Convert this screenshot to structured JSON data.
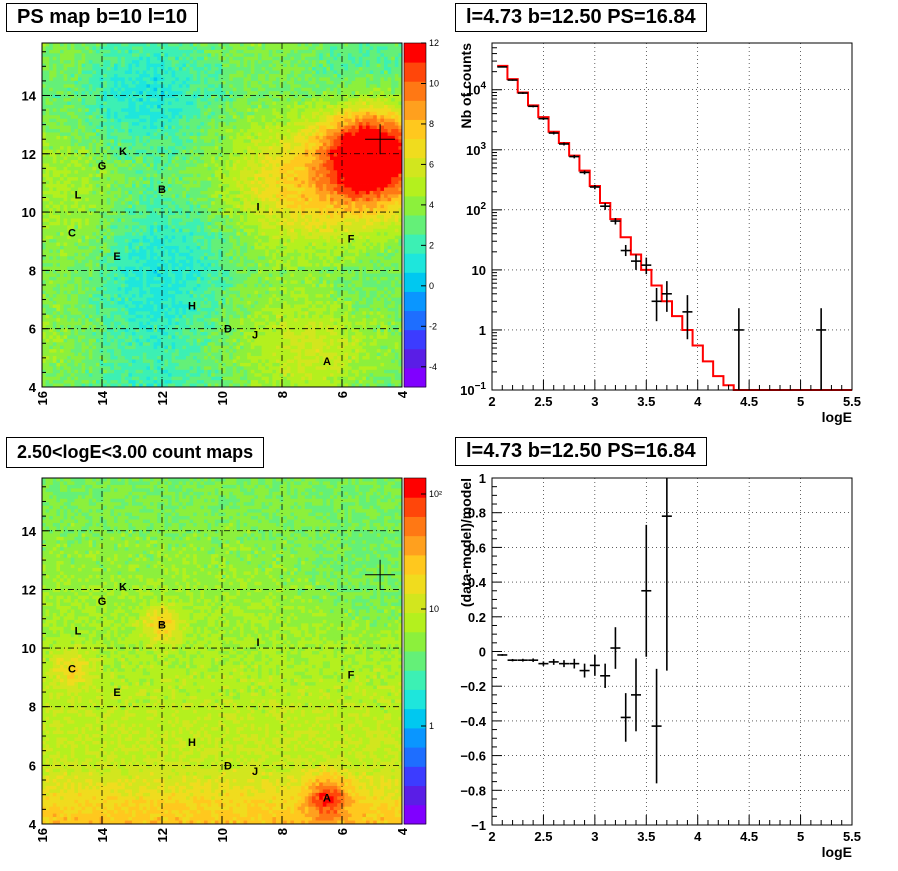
{
  "panels": {
    "ps_map": {
      "title": "PS map b=10 l=10"
    },
    "count_map": {
      "title": "2.50<logE<3.00 count maps"
    },
    "spectrum": {
      "title": "l=4.73 b=12.50 PS=16.84"
    },
    "residual": {
      "title": "l=4.73 b=12.50 PS=16.84"
    }
  },
  "chart_data": [
    {
      "id": "ps_map",
      "type": "heatmap",
      "title": "PS map b=10 l=10",
      "xlim": [
        16,
        4
      ],
      "ylim": [
        4,
        15.8
      ],
      "x_ticks": [
        16,
        14,
        12,
        10,
        8,
        6,
        4
      ],
      "y_ticks": [
        4,
        6,
        8,
        10,
        12,
        14
      ],
      "colorbar": {
        "range": [
          -5,
          12
        ],
        "ticks": [
          12,
          10,
          8,
          6,
          4,
          2,
          0,
          -2,
          -4
        ]
      },
      "marker": {
        "x": 4.73,
        "y": 12.5
      },
      "sources": [
        {
          "label": "K",
          "x": 13.3,
          "y": 12.1
        },
        {
          "label": "G",
          "x": 14.0,
          "y": 11.6
        },
        {
          "label": "B",
          "x": 12.0,
          "y": 10.8
        },
        {
          "label": "L",
          "x": 14.8,
          "y": 10.6
        },
        {
          "label": "I",
          "x": 8.8,
          "y": 10.2
        },
        {
          "label": "C",
          "x": 15.0,
          "y": 9.3
        },
        {
          "label": "F",
          "x": 5.7,
          "y": 9.1
        },
        {
          "label": "E",
          "x": 13.5,
          "y": 8.5
        },
        {
          "label": "H",
          "x": 11.0,
          "y": 6.8
        },
        {
          "label": "D",
          "x": 9.8,
          "y": 6.0
        },
        {
          "label": "J",
          "x": 8.9,
          "y": 5.8
        },
        {
          "label": "A",
          "x": 6.5,
          "y": 4.9
        }
      ]
    },
    {
      "id": "count_map",
      "type": "heatmap",
      "title": "2.50<logE<3.00 count maps",
      "xlim": [
        16,
        4
      ],
      "ylim": [
        4,
        15.8
      ],
      "x_ticks": [
        16,
        14,
        12,
        10,
        8,
        6,
        4
      ],
      "y_ticks": [
        4,
        6,
        8,
        10,
        12,
        14
      ],
      "colorbar": {
        "scale": "log",
        "ticks": [
          "10²",
          "10",
          "1"
        ]
      },
      "marker": {
        "x": 4.73,
        "y": 12.5
      },
      "sources": [
        {
          "label": "K",
          "x": 13.3,
          "y": 12.1
        },
        {
          "label": "G",
          "x": 14.0,
          "y": 11.6
        },
        {
          "label": "B",
          "x": 12.0,
          "y": 10.8
        },
        {
          "label": "L",
          "x": 14.8,
          "y": 10.6
        },
        {
          "label": "I",
          "x": 8.8,
          "y": 10.2
        },
        {
          "label": "C",
          "x": 15.0,
          "y": 9.3
        },
        {
          "label": "F",
          "x": 5.7,
          "y": 9.1
        },
        {
          "label": "E",
          "x": 13.5,
          "y": 8.5
        },
        {
          "label": "H",
          "x": 11.0,
          "y": 6.8
        },
        {
          "label": "D",
          "x": 9.8,
          "y": 6.0
        },
        {
          "label": "J",
          "x": 8.9,
          "y": 5.8
        },
        {
          "label": "A",
          "x": 6.5,
          "y": 4.9
        }
      ]
    },
    {
      "id": "spectrum",
      "type": "line",
      "title": "l=4.73 b=12.50 PS=16.84",
      "xlabel": "logE",
      "ylabel": "Nb of counts",
      "xlim": [
        2,
        5.5
      ],
      "ylim": [
        0.1,
        60000
      ],
      "yscale": "log",
      "grid": true,
      "x_ticks": [
        "2",
        "2.5",
        "3",
        "3.5",
        "4",
        "4.5",
        "5",
        "5.5"
      ],
      "y_ticks": [
        {
          "v": 0.1,
          "base": "10",
          "exp": "−1"
        },
        {
          "v": 1,
          "base": "1",
          "exp": ""
        },
        {
          "v": 10,
          "base": "10",
          "exp": ""
        },
        {
          "v": 100,
          "base": "10",
          "exp": "2"
        },
        {
          "v": 1000,
          "base": "10",
          "exp": "3"
        },
        {
          "v": 10000,
          "base": "10",
          "exp": "4"
        }
      ],
      "model_steps": [
        {
          "x0": 2.05,
          "x1": 2.15,
          "y": 25000
        },
        {
          "x0": 2.15,
          "x1": 2.25,
          "y": 15000
        },
        {
          "x0": 2.25,
          "x1": 2.35,
          "y": 9000
        },
        {
          "x0": 2.35,
          "x1": 2.45,
          "y": 5500
        },
        {
          "x0": 2.45,
          "x1": 2.55,
          "y": 3500
        },
        {
          "x0": 2.55,
          "x1": 2.65,
          "y": 2000
        },
        {
          "x0": 2.65,
          "x1": 2.75,
          "y": 1300
        },
        {
          "x0": 2.75,
          "x1": 2.85,
          "y": 800
        },
        {
          "x0": 2.85,
          "x1": 2.95,
          "y": 450
        },
        {
          "x0": 2.95,
          "x1": 3.05,
          "y": 250
        },
        {
          "x0": 3.05,
          "x1": 3.15,
          "y": 130
        },
        {
          "x0": 3.15,
          "x1": 3.25,
          "y": 70
        },
        {
          "x0": 3.25,
          "x1": 3.35,
          "y": 35
        },
        {
          "x0": 3.35,
          "x1": 3.45,
          "y": 18
        },
        {
          "x0": 3.45,
          "x1": 3.55,
          "y": 10
        },
        {
          "x0": 3.55,
          "x1": 3.65,
          "y": 5.5
        },
        {
          "x0": 3.65,
          "x1": 3.75,
          "y": 3
        },
        {
          "x0": 3.75,
          "x1": 3.85,
          "y": 1.7
        },
        {
          "x0": 3.85,
          "x1": 3.95,
          "y": 1
        },
        {
          "x0": 3.95,
          "x1": 4.05,
          "y": 0.55
        },
        {
          "x0": 4.05,
          "x1": 4.15,
          "y": 0.3
        },
        {
          "x0": 4.15,
          "x1": 4.25,
          "y": 0.17
        },
        {
          "x0": 4.25,
          "x1": 4.35,
          "y": 0.12
        },
        {
          "x0": 4.35,
          "x1": 4.45,
          "y": 0.1
        },
        {
          "x0": 4.45,
          "x1": 5.5,
          "y": 0.1
        }
      ],
      "data_points": [
        {
          "x": 2.1,
          "y": 24000,
          "lo": 23500,
          "hi": 24500
        },
        {
          "x": 2.2,
          "y": 14500,
          "lo": 14100,
          "hi": 14900
        },
        {
          "x": 2.3,
          "y": 8800,
          "lo": 8500,
          "hi": 9100
        },
        {
          "x": 2.4,
          "y": 5300,
          "lo": 5100,
          "hi": 5500
        },
        {
          "x": 2.5,
          "y": 3300,
          "lo": 3150,
          "hi": 3450
        },
        {
          "x": 2.6,
          "y": 1900,
          "lo": 1800,
          "hi": 2000
        },
        {
          "x": 2.7,
          "y": 1250,
          "lo": 1180,
          "hi": 1320
        },
        {
          "x": 2.8,
          "y": 770,
          "lo": 720,
          "hi": 820
        },
        {
          "x": 2.9,
          "y": 420,
          "lo": 390,
          "hi": 450
        },
        {
          "x": 3.0,
          "y": 240,
          "lo": 220,
          "hi": 260
        },
        {
          "x": 3.1,
          "y": 115,
          "lo": 100,
          "hi": 130
        },
        {
          "x": 3.2,
          "y": 65,
          "lo": 57,
          "hi": 73
        },
        {
          "x": 3.3,
          "y": 21,
          "lo": 17,
          "hi": 26
        },
        {
          "x": 3.4,
          "y": 14,
          "lo": 10,
          "hi": 18
        },
        {
          "x": 3.5,
          "y": 12,
          "lo": 8.5,
          "hi": 16
        },
        {
          "x": 3.6,
          "y": 3,
          "lo": 1.4,
          "hi": 5
        },
        {
          "x": 3.7,
          "y": 4,
          "lo": 2,
          "hi": 6.5
        },
        {
          "x": 3.9,
          "y": 2,
          "lo": 0.7,
          "hi": 3.8
        },
        {
          "x": 4.4,
          "y": 1,
          "lo": 0.1,
          "hi": 2.3
        },
        {
          "x": 5.2,
          "y": 1,
          "lo": 0.1,
          "hi": 2.3
        }
      ]
    },
    {
      "id": "residual",
      "type": "scatter",
      "title": "l=4.73 b=12.50 PS=16.84",
      "xlabel": "logE",
      "ylabel": "(data-model)/model",
      "xlim": [
        2,
        5.5
      ],
      "ylim": [
        -1,
        1
      ],
      "grid": true,
      "x_ticks": [
        "2",
        "2.5",
        "3",
        "3.5",
        "4",
        "4.5",
        "5",
        "5.5"
      ],
      "y_ticks": [
        "−1",
        "−0.8",
        "−0.6",
        "−0.4",
        "−0.2",
        "0",
        "0.2",
        "0.4",
        "0.6",
        "0.8",
        "1"
      ],
      "points": [
        {
          "x": 2.1,
          "y": -0.02,
          "err": 0.005
        },
        {
          "x": 2.2,
          "y": -0.05,
          "err": 0.007
        },
        {
          "x": 2.3,
          "y": -0.05,
          "err": 0.008
        },
        {
          "x": 2.4,
          "y": -0.05,
          "err": 0.01
        },
        {
          "x": 2.5,
          "y": -0.07,
          "err": 0.013
        },
        {
          "x": 2.6,
          "y": -0.06,
          "err": 0.017
        },
        {
          "x": 2.7,
          "y": -0.07,
          "err": 0.02
        },
        {
          "x": 2.8,
          "y": -0.07,
          "err": 0.028
        },
        {
          "x": 2.9,
          "y": -0.11,
          "err": 0.04
        },
        {
          "x": 3.0,
          "y": -0.08,
          "err": 0.06
        },
        {
          "x": 3.1,
          "y": -0.14,
          "err": 0.07
        },
        {
          "x": 3.2,
          "y": 0.02,
          "err": 0.12
        },
        {
          "x": 3.3,
          "y": -0.38,
          "err": 0.14
        },
        {
          "x": 3.4,
          "y": -0.25,
          "err": 0.21
        },
        {
          "x": 3.5,
          "y": 0.35,
          "err": 0.38
        },
        {
          "x": 3.6,
          "y": -0.43,
          "err": 0.33
        },
        {
          "x": 3.7,
          "y": 0.78,
          "err": 0.89
        }
      ]
    }
  ]
}
